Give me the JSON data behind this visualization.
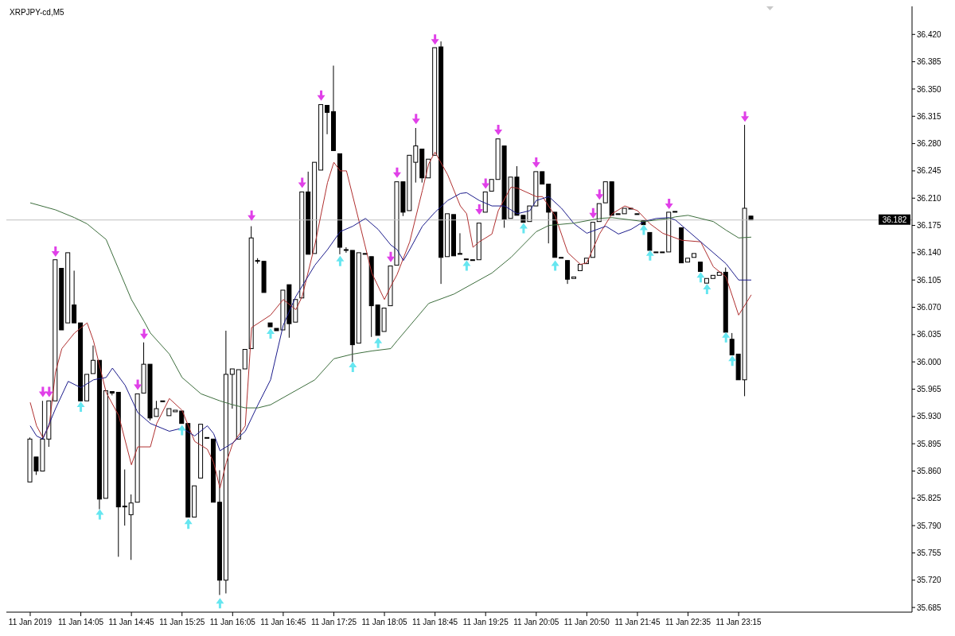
{
  "chart_data": {
    "type": "candlestick",
    "title": "XRPJPY-cd,M5",
    "color": "#000000",
    "categories": [
      "11 Jan 2019",
      null,
      null,
      null,
      null,
      null,
      null,
      null,
      "11 Jan 14:05",
      null,
      null,
      null,
      null,
      null,
      null,
      null,
      "11 Jan 14:45",
      null,
      null,
      null,
      null,
      null,
      null,
      null,
      "11 Jan 15:25",
      null,
      null,
      null,
      null,
      null,
      null,
      null,
      "11 Jan 16:05",
      null,
      null,
      null,
      null,
      null,
      null,
      null,
      "11 Jan 16:45",
      null,
      null,
      null,
      null,
      null,
      null,
      null,
      "11 Jan 17:25",
      null,
      null,
      null,
      null,
      null,
      null,
      null,
      "11 Jan 18:05",
      null,
      null,
      null,
      null,
      null,
      null,
      null,
      "11 Jan 18:45",
      null,
      null,
      null,
      null,
      null,
      null,
      null,
      "11 Jan 19:25",
      null,
      null,
      null,
      null,
      null,
      null,
      null,
      "11 Jan 20:05",
      null,
      null,
      null,
      null,
      null,
      null,
      null,
      "11 Jan 20:50",
      null,
      null,
      null,
      null,
      null,
      null,
      null,
      "11 Jan 21:45",
      null,
      null,
      null,
      null,
      null,
      null,
      null,
      "11 Jan 22:35",
      null,
      null,
      null,
      null,
      null,
      null,
      null,
      "11 Jan 23:15",
      null,
      null
    ],
    "ohlc": [
      [
        35.846,
        35.903,
        35.846,
        35.901
      ],
      [
        35.878,
        35.878,
        35.855,
        35.86
      ],
      [
        35.86,
        35.95,
        35.86,
        35.901
      ],
      [
        35.901,
        35.95,
        35.891,
        35.95
      ],
      [
        35.95,
        36.131,
        35.95,
        36.131
      ],
      [
        36.12,
        36.12,
        36.041,
        36.041
      ],
      [
        36.05,
        36.14,
        36.05,
        36.14
      ],
      [
        36.073,
        36.117,
        36.05,
        36.05
      ],
      [
        36.05,
        36.05,
        35.95,
        35.95
      ],
      [
        35.95,
        35.984,
        35.95,
        35.984
      ],
      [
        35.985,
        36.021,
        35.985,
        36.002
      ],
      [
        36.002,
        36.002,
        35.811,
        35.824
      ],
      [
        35.825,
        35.963,
        35.825,
        35.963
      ],
      [
        35.962,
        35.962,
        35.957,
        35.96
      ],
      [
        35.961,
        35.961,
        35.75,
        35.814
      ],
      [
        35.815,
        35.862,
        35.79,
        35.814
      ],
      [
        35.804,
        35.83,
        35.746,
        35.819
      ],
      [
        35.82,
        35.959,
        35.82,
        35.959
      ],
      [
        35.96,
        36.025,
        35.96,
        35.997
      ],
      [
        35.997,
        35.997,
        35.925,
        35.928
      ],
      [
        35.93,
        35.95,
        35.93,
        35.94
      ],
      [
        35.95,
        35.95,
        35.949,
        35.949
      ],
      [
        35.931,
        35.94,
        35.931,
        35.94
      ],
      [
        35.936,
        35.938,
        35.936,
        35.938
      ],
      [
        35.937,
        35.937,
        35.921,
        35.921
      ],
      [
        35.921,
        35.921,
        35.801,
        35.801
      ],
      [
        35.801,
        35.841,
        35.801,
        35.841
      ],
      [
        35.851,
        35.92,
        35.851,
        35.92
      ],
      [
        35.902,
        35.903,
        35.902,
        35.903
      ],
      [
        35.901,
        35.901,
        35.82,
        35.82
      ],
      [
        35.82,
        35.861,
        35.701,
        35.72
      ],
      [
        35.72,
        36.04,
        35.703,
        35.984
      ],
      [
        35.984,
        35.991,
        35.94,
        35.991
      ],
      [
        35.901,
        35.99,
        35.901,
        35.99
      ],
      [
        35.991,
        36.016,
        35.991,
        36.016
      ],
      [
        36.017,
        36.174,
        36.017,
        36.159
      ],
      [
        36.13,
        36.133,
        36.126,
        36.129
      ],
      [
        36.129,
        36.129,
        36.089,
        36.089
      ],
      [
        36.05,
        36.05,
        36.045,
        36.045
      ],
      [
        36.043,
        36.043,
        36.04,
        36.04
      ],
      [
        36.041,
        36.092,
        36.041,
        36.092
      ],
      [
        36.099,
        36.099,
        36.031,
        36.049
      ],
      [
        36.051,
        36.08,
        36.051,
        36.08
      ],
      [
        36.082,
        36.218,
        36.082,
        36.218
      ],
      [
        36.218,
        36.244,
        36.138,
        36.138
      ],
      [
        36.139,
        36.256,
        36.139,
        36.256
      ],
      [
        36.246,
        36.33,
        36.246,
        36.33
      ],
      [
        36.329,
        36.329,
        36.292,
        36.32
      ],
      [
        36.321,
        36.38,
        36.271,
        36.271
      ],
      [
        36.267,
        36.267,
        36.138,
        36.147
      ],
      [
        36.144,
        36.147,
        36.14,
        36.143
      ],
      [
        36.143,
        36.143,
        36.0,
        36.022
      ],
      [
        36.024,
        36.14,
        36.024,
        36.14
      ],
      [
        36.139,
        36.139,
        36.138,
        36.138
      ],
      [
        36.135,
        36.135,
        36.032,
        36.072
      ],
      [
        36.073,
        36.073,
        36.034,
        36.034
      ],
      [
        36.039,
        36.069,
        36.039,
        36.069
      ],
      [
        36.072,
        36.123,
        36.072,
        36.123
      ],
      [
        36.124,
        36.231,
        36.124,
        36.231
      ],
      [
        36.231,
        36.231,
        36.187,
        36.192
      ],
      [
        36.194,
        36.265,
        36.194,
        36.265
      ],
      [
        36.256,
        36.3,
        36.23,
        36.277
      ],
      [
        36.273,
        36.273,
        36.23,
        36.236
      ],
      [
        36.236,
        36.26,
        36.236,
        36.26
      ],
      [
        36.265,
        36.403,
        36.265,
        36.403
      ],
      [
        36.404,
        36.411,
        36.1,
        36.134
      ],
      [
        36.135,
        36.19,
        36.135,
        36.19
      ],
      [
        36.189,
        36.189,
        36.136,
        36.136
      ],
      [
        36.139,
        36.165,
        36.138,
        36.138
      ],
      [
        36.132,
        36.132,
        36.131,
        36.131
      ],
      [
        36.131,
        36.131,
        36.13,
        36.13
      ],
      [
        36.131,
        36.178,
        36.131,
        36.178
      ],
      [
        36.192,
        36.218,
        36.192,
        36.218
      ],
      [
        36.219,
        36.234,
        36.219,
        36.234
      ],
      [
        36.234,
        36.286,
        36.234,
        36.286
      ],
      [
        36.277,
        36.277,
        36.172,
        36.183
      ],
      [
        36.184,
        36.237,
        36.184,
        36.237
      ],
      [
        36.237,
        36.251,
        36.188,
        36.188
      ],
      [
        36.188,
        36.188,
        36.179,
        36.179
      ],
      [
        36.18,
        36.2,
        36.18,
        36.2
      ],
      [
        36.2,
        36.244,
        36.2,
        36.244
      ],
      [
        36.244,
        36.244,
        36.228,
        36.228
      ],
      [
        36.228,
        36.228,
        36.152,
        36.192
      ],
      [
        36.192,
        36.192,
        36.134,
        36.134
      ],
      [
        36.134,
        36.134,
        36.133,
        36.133
      ],
      [
        36.13,
        36.13,
        36.1,
        36.106
      ],
      [
        36.107,
        36.109,
        36.107,
        36.109
      ],
      [
        36.117,
        36.125,
        36.117,
        36.125
      ],
      [
        36.126,
        36.133,
        36.126,
        36.133
      ],
      [
        36.134,
        36.179,
        36.134,
        36.179
      ],
      [
        36.18,
        36.203,
        36.18,
        36.203
      ],
      [
        36.204,
        36.231,
        36.204,
        36.231
      ],
      [
        36.231,
        36.231,
        36.188,
        36.188
      ],
      [
        36.19,
        36.19,
        36.189,
        36.189
      ],
      [
        36.19,
        36.197,
        36.19,
        36.197
      ],
      [
        36.197,
        36.197,
        36.196,
        36.196
      ],
      [
        36.19,
        36.19,
        36.189,
        36.189
      ],
      [
        36.181,
        36.181,
        36.176,
        36.176
      ],
      [
        36.166,
        36.166,
        36.143,
        36.143
      ],
      [
        36.141,
        36.141,
        36.14,
        36.14
      ],
      [
        36.141,
        36.141,
        36.14,
        36.14
      ],
      [
        36.141,
        36.192,
        36.141,
        36.192
      ],
      [
        36.193,
        36.193,
        36.192,
        36.192
      ],
      [
        36.172,
        36.172,
        36.127,
        36.127
      ],
      [
        36.128,
        36.133,
        36.128,
        36.133
      ],
      [
        36.134,
        36.139,
        36.134,
        36.139
      ],
      [
        36.128,
        36.128,
        36.116,
        36.116
      ],
      [
        36.101,
        36.107,
        36.101,
        36.107
      ],
      [
        36.107,
        36.111,
        36.107,
        36.111
      ],
      [
        36.111,
        36.115,
        36.111,
        36.115
      ],
      [
        36.115,
        36.121,
        36.038,
        36.038
      ],
      [
        36.029,
        36.037,
        36.009,
        36.009
      ],
      [
        36.01,
        36.01,
        35.977,
        35.977
      ],
      [
        35.977,
        36.304,
        35.956,
        36.197
      ],
      [
        36.187,
        36.187,
        36.182,
        36.182
      ]
    ],
    "series": [
      {
        "type": "line",
        "color": "#b03030",
        "values": [
          35.948,
          35.918,
          35.903,
          35.918,
          35.987,
          36.017,
          null,
          36.037,
          null,
          36.05,
          36.027,
          null,
          35.961,
          null,
          35.931,
          null,
          35.868,
          35.891,
          null,
          35.891,
          35.921,
          null,
          35.953,
          null,
          35.938,
          null,
          35.898,
          null,
          35.888,
          35.871,
          35.838,
          35.871,
          35.895,
          null,
          35.918,
          36.044,
          null,
          null,
          36.06,
          null,
          36.08,
          null,
          36.067,
          36.084,
          null,
          36.15,
          null,
          36.23,
          36.256,
          36.245,
          36.245,
          null,
          36.18,
          null,
          36.114,
          null,
          36.08,
          36.097,
          36.112,
          null,
          36.154,
          null,
          36.22,
          36.254,
          36.269,
          null,
          36.24,
          null,
          36.2,
          36.19,
          36.147,
          36.154,
          null,
          36.164,
          36.194,
          null,
          36.224,
          36.223,
          null,
          null,
          36.212,
          36.212,
          null,
          36.187,
          null,
          36.14,
          null,
          36.125,
          36.127,
          null,
          36.164,
          null,
          36.19,
          null,
          36.2,
          null,
          36.194,
          null,
          36.177,
          null,
          36.165,
          null,
          null,
          36.156,
          null,
          null,
          36.154,
          null,
          36.122,
          null,
          36.109,
          null,
          36.06,
          null,
          36.086
        ]
      },
      {
        "type": "line",
        "color": "#1c1c8c",
        "values": [
          35.918,
          35.905,
          35.901,
          null,
          35.94,
          null,
          35.975,
          null,
          35.967,
          null,
          35.977,
          null,
          35.98,
          35.992,
          null,
          35.97,
          null,
          35.935,
          null,
          35.921,
          null,
          null,
          35.911,
          null,
          35.915,
          null,
          35.905,
          null,
          35.918,
          35.908,
          35.886,
          null,
          35.896,
          null,
          35.911,
          null,
          35.945,
          null,
          35.977,
          null,
          36.047,
          null,
          36.084,
          null,
          null,
          36.124,
          null,
          36.144,
          null,
          36.167,
          null,
          36.174,
          null,
          36.184,
          null,
          36.17,
          null,
          36.15,
          36.144,
          36.13,
          36.144,
          null,
          36.174,
          null,
          36.192,
          null,
          36.207,
          null,
          36.216,
          36.217,
          null,
          36.207,
          null,
          36.2,
          null,
          36.2,
          null,
          36.19,
          null,
          36.194,
          36.207,
          null,
          36.212,
          null,
          36.197,
          null,
          36.177,
          null,
          36.165,
          null,
          null,
          36.174,
          null,
          36.164,
          null,
          36.17,
          null,
          36.18,
          null,
          36.184,
          null,
          36.185,
          36.182,
          null,
          null,
          null,
          36.154,
          null,
          null,
          null,
          36.126,
          null,
          36.105,
          null,
          36.105
        ]
      },
      {
        "type": "line",
        "color": "#3d6e3d",
        "values": [
          36.204,
          null,
          null,
          null,
          36.195,
          null,
          null,
          36.185,
          null,
          36.177,
          null,
          null,
          36.157,
          null,
          null,
          null,
          36.08,
          null,
          36.052,
          36.037,
          null,
          null,
          36.01,
          null,
          35.98,
          null,
          null,
          35.959,
          null,
          null,
          35.95,
          null,
          35.945,
          null,
          35.941,
          null,
          35.941,
          null,
          35.945,
          null,
          null,
          null,
          null,
          null,
          null,
          35.977,
          null,
          null,
          36.004,
          null,
          null,
          36.01,
          null,
          null,
          36.014,
          null,
          null,
          36.017,
          36.027,
          null,
          null,
          null,
          null,
          36.075,
          null,
          null,
          null,
          36.087,
          null,
          null,
          null,
          null,
          null,
          36.114,
          null,
          null,
          36.134,
          null,
          null,
          null,
          36.167,
          null,
          36.175,
          null,
          null,
          null,
          36.178,
          null,
          null,
          null,
          36.184,
          null,
          36.185,
          null,
          null,
          36.182,
          null,
          36.18,
          null,
          null,
          null,
          36.184,
          36.186,
          null,
          36.188,
          null,
          null,
          null,
          36.18,
          null,
          36.169,
          null,
          36.159,
          null,
          36.16
        ]
      },
      {
        "type": "scatter",
        "color": "#e040e8",
        "values": [
          null,
          null,
          35.961,
          35.961,
          36.141,
          null,
          null,
          null,
          null,
          null,
          null,
          null,
          null,
          null,
          null,
          null,
          null,
          35.97,
          36.035,
          null,
          null,
          null,
          null,
          null,
          null,
          null,
          null,
          null,
          null,
          null,
          null,
          null,
          null,
          null,
          null,
          36.187,
          null,
          null,
          null,
          null,
          null,
          null,
          null,
          36.229,
          null,
          null,
          36.341,
          null,
          null,
          null,
          null,
          null,
          null,
          null,
          null,
          null,
          null,
          36.134,
          36.242,
          null,
          null,
          36.311,
          null,
          null,
          36.413,
          null,
          null,
          null,
          null,
          null,
          null,
          36.195,
          36.228,
          null,
          36.297,
          null,
          null,
          null,
          null,
          null,
          36.255,
          null,
          null,
          null,
          null,
          null,
          null,
          null,
          null,
          36.19,
          36.214,
          null,
          null,
          null,
          null,
          null,
          null,
          null,
          null,
          null,
          null,
          36.202,
          null,
          null,
          null,
          null,
          null,
          null,
          null,
          null,
          null,
          null,
          null,
          36.314,
          null
        ]
      },
      {
        "type": "scatter",
        "color": "#66e6f0",
        "values": [
          null,
          null,
          null,
          null,
          null,
          null,
          null,
          null,
          35.943,
          null,
          null,
          35.805,
          null,
          null,
          null,
          null,
          null,
          null,
          null,
          null,
          null,
          null,
          null,
          null,
          35.913,
          35.793,
          null,
          null,
          null,
          null,
          35.691,
          null,
          null,
          null,
          null,
          null,
          null,
          null,
          36.037,
          null,
          null,
          null,
          null,
          null,
          null,
          null,
          null,
          null,
          null,
          36.13,
          null,
          35.994,
          null,
          null,
          null,
          36.025,
          null,
          null,
          null,
          null,
          null,
          null,
          null,
          null,
          null,
          null,
          null,
          null,
          null,
          36.124,
          null,
          null,
          null,
          null,
          null,
          null,
          null,
          null,
          36.172,
          null,
          null,
          null,
          null,
          36.124,
          null,
          null,
          null,
          null,
          null,
          null,
          null,
          null,
          null,
          null,
          null,
          null,
          null,
          36.17,
          36.137,
          null,
          null,
          null,
          null,
          null,
          null,
          null,
          36.109,
          36.094,
          null,
          null,
          36.032,
          36.002,
          null,
          null,
          null
        ]
      }
    ],
    "ylim": [
      35.679,
      36.456
    ],
    "yticks": [
      {
        "value": 35.685,
        "label": "35.685"
      },
      {
        "value": 35.72,
        "label": "35.720"
      },
      {
        "value": 35.755,
        "label": "35.755"
      },
      {
        "value": 35.79,
        "label": "35.790"
      },
      {
        "value": 35.825,
        "label": "35.825"
      },
      {
        "value": 35.86,
        "label": "35.860"
      },
      {
        "value": 35.895,
        "label": "35.895"
      },
      {
        "value": 35.93,
        "label": "35.930"
      },
      {
        "value": 35.965,
        "label": "35.965"
      },
      {
        "value": 36,
        "label": "36.000"
      },
      {
        "value": 36.035,
        "label": "36.035"
      },
      {
        "value": 36.07,
        "label": "36.070"
      },
      {
        "value": 36.105,
        "label": "36.105"
      },
      {
        "value": 36.14,
        "label": "36.140"
      },
      {
        "value": 36.175,
        "label": "36.175"
      },
      {
        "value": 36.21,
        "label": "36.210"
      },
      {
        "value": 36.245,
        "label": "36.245"
      },
      {
        "value": 36.28,
        "label": "36.280"
      },
      {
        "value": 36.315,
        "label": "36.315"
      },
      {
        "value": 36.35,
        "label": "36.350"
      },
      {
        "value": 36.385,
        "label": "36.385"
      },
      {
        "value": 36.42,
        "label": "36.420"
      }
    ],
    "ref_lines": [
      {
        "axis": "y",
        "value": 36.182,
        "label": "36.182",
        "color": "#c0c0c0"
      }
    ]
  }
}
